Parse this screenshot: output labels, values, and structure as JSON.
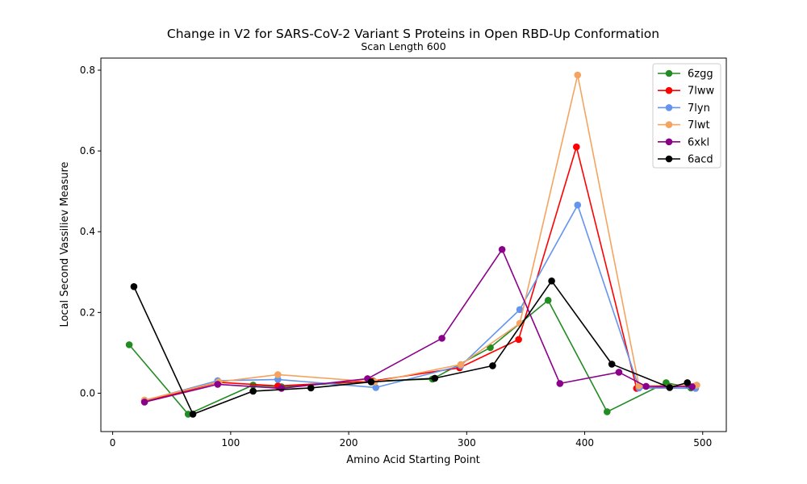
{
  "chart_data": {
    "type": "line",
    "title": "Change in V2 for SARS-CoV-2 Variant S Proteins in Open RBD-Up Conformation",
    "subtitle": "Scan Length 600",
    "xlabel": "Amino Acid Starting Point",
    "ylabel": "Local Second Vassiliev Measure",
    "xlim": [
      -10,
      520
    ],
    "ylim": [
      -0.095,
      0.83
    ],
    "xticks": [
      0,
      100,
      200,
      300,
      400,
      500
    ],
    "yticks": [
      0.0,
      0.2,
      0.4,
      0.6,
      0.8
    ],
    "xtick_labels": [
      "0",
      "100",
      "200",
      "300",
      "400",
      "500"
    ],
    "ytick_labels": [
      "0.0",
      "0.2",
      "0.4",
      "0.6",
      "0.8"
    ],
    "grid": false,
    "legend": "top-right",
    "series": [
      {
        "name": "6zgg",
        "color": "#228b22",
        "x": [
          14,
          64,
          119,
          143,
          221,
          271,
          320,
          369,
          419,
          469,
          490
        ],
        "y": [
          0.12,
          -0.052,
          0.02,
          0.016,
          0.03,
          0.035,
          0.113,
          0.23,
          -0.046,
          0.026,
          0.013
        ]
      },
      {
        "name": "7lww",
        "color": "#ff0000",
        "x": [
          27,
          90,
          140,
          220,
          294,
          344,
          393,
          444,
          494
        ],
        "y": [
          -0.02,
          0.027,
          0.018,
          0.03,
          0.063,
          0.133,
          0.61,
          0.012,
          0.018
        ]
      },
      {
        "name": "7lyn",
        "color": "#6495ed",
        "x": [
          27,
          89,
          140,
          223,
          295,
          345,
          394,
          446,
          494
        ],
        "y": [
          -0.018,
          0.031,
          0.034,
          0.014,
          0.068,
          0.207,
          0.466,
          0.013,
          0.012
        ]
      },
      {
        "name": "7lwt",
        "color": "#f4a460",
        "x": [
          27,
          90,
          140,
          222,
          295,
          345,
          394,
          446,
          495
        ],
        "y": [
          -0.017,
          0.028,
          0.046,
          0.028,
          0.071,
          0.173,
          0.788,
          0.018,
          0.02
        ]
      },
      {
        "name": "6xkl",
        "color": "#8b008b",
        "x": [
          27,
          89,
          143,
          216,
          279,
          330,
          379,
          429,
          452,
          491
        ],
        "y": [
          -0.022,
          0.022,
          0.012,
          0.036,
          0.136,
          0.356,
          0.024,
          0.052,
          0.017,
          0.016
        ]
      },
      {
        "name": "6acd",
        "color": "#000000",
        "x": [
          18,
          68,
          119,
          168,
          219,
          273,
          322,
          372,
          423,
          472,
          487
        ],
        "y": [
          0.264,
          -0.052,
          0.005,
          0.013,
          0.028,
          0.037,
          0.068,
          0.278,
          0.072,
          0.014,
          0.026
        ]
      }
    ]
  }
}
